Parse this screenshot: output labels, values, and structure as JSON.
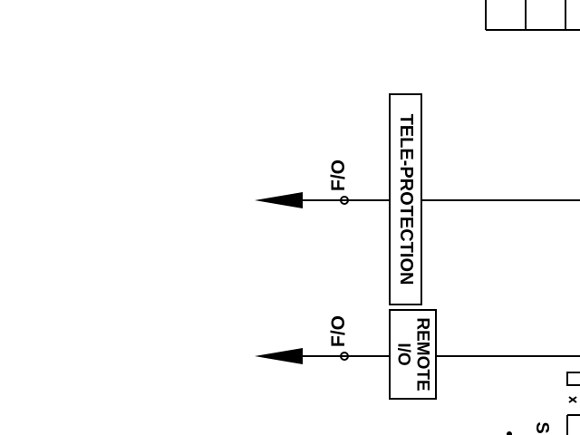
{
  "diagram": {
    "blocks": {
      "teleprotection": {
        "label": "TELE-PROTECTION"
      },
      "remote_io": {
        "line1": "REMOTE",
        "line2": "I/O"
      }
    },
    "connections": {
      "upper": {
        "label": "F/O"
      },
      "lower": {
        "label": "F/O"
      }
    },
    "partial_text": {
      "bottom_glyph": "S"
    },
    "colors": {
      "ink": "#000000",
      "background": "#ffffff"
    }
  }
}
